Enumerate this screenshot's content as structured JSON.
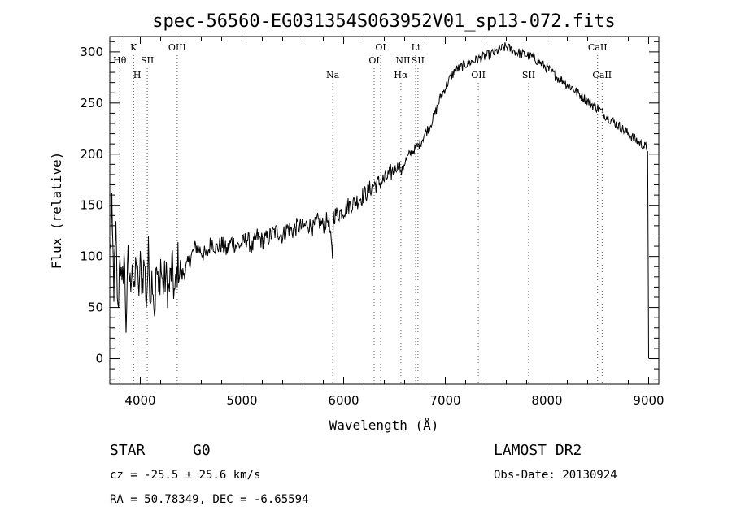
{
  "chart_data": {
    "type": "line",
    "title": "spec-56560-EG031354S063952V01_sp13-072.fits",
    "xlabel": "Wavelength (Å)",
    "ylabel": "Flux (relative)",
    "xlim": [
      3700,
      9100
    ],
    "ylim": [
      -25,
      315
    ],
    "x_ticks": [
      4000,
      5000,
      6000,
      7000,
      8000,
      9000
    ],
    "y_ticks": [
      0,
      50,
      100,
      150,
      200,
      250,
      300
    ],
    "grid": false,
    "legend": "none",
    "series": [
      {
        "x": [
          3705,
          3720,
          3740,
          3760,
          3780,
          3800,
          3820,
          3840,
          3860,
          3880,
          3900,
          3920,
          3940,
          3960,
          3980,
          4000,
          4020,
          4040,
          4060,
          4080,
          4100,
          4120,
          4140,
          4160,
          4180,
          4200,
          4220,
          4250,
          4280,
          4310,
          4340,
          4370,
          4400,
          4430,
          4460,
          4500,
          4550,
          4600,
          4650,
          4700,
          4750,
          4800,
          4850,
          4900,
          4950,
          5000,
          5050,
          5100,
          5150,
          5200,
          5250,
          5300,
          5350,
          5400,
          5450,
          5500,
          5550,
          5600,
          5650,
          5700,
          5750,
          5800,
          5850,
          5890,
          5900,
          5950,
          6000,
          6050,
          6100,
          6150,
          6200,
          6250,
          6300,
          6350,
          6400,
          6450,
          6500,
          6550,
          6563,
          6600,
          6650,
          6700,
          6750,
          6800,
          6850,
          6900,
          6950,
          7000,
          7050,
          7100,
          7150,
          7200,
          7250,
          7300,
          7350,
          7400,
          7450,
          7500,
          7550,
          7600,
          7650,
          7700,
          7750,
          7800,
          7850,
          7900,
          7950,
          8000,
          8050,
          8100,
          8150,
          8200,
          8250,
          8300,
          8350,
          8400,
          8450,
          8500,
          8550,
          8600,
          8650,
          8700,
          8750,
          8800,
          8850,
          8900,
          8950,
          8990,
          9000
        ],
        "y": [
          105,
          140,
          70,
          120,
          40,
          110,
          60,
          105,
          35,
          95,
          70,
          100,
          55,
          105,
          60,
          90,
          75,
          95,
          55,
          100,
          65,
          85,
          45,
          90,
          60,
          95,
          70,
          80,
          65,
          90,
          60,
          95,
          80,
          85,
          90,
          100,
          110,
          105,
          100,
          115,
          108,
          112,
          105,
          115,
          110,
          112,
          118,
          108,
          120,
          115,
          118,
          122,
          125,
          120,
          128,
          125,
          130,
          128,
          132,
          127,
          135,
          130,
          137,
          100,
          140,
          142,
          145,
          150,
          152,
          156,
          160,
          165,
          170,
          172,
          175,
          180,
          185,
          190,
          180,
          192,
          200,
          205,
          210,
          220,
          228,
          240,
          255,
          265,
          275,
          282,
          285,
          288,
          290,
          292,
          294,
          296,
          298,
          300,
          303,
          305,
          302,
          300,
          298,
          297,
          295,
          292,
          288,
          284,
          280,
          275,
          272,
          268,
          265,
          260,
          256,
          252,
          248,
          245,
          240,
          236,
          232,
          228,
          224,
          220,
          216,
          212,
          208,
          206,
          0
        ]
      }
    ],
    "line_markers": [
      {
        "label": "Hθ",
        "x": 3798,
        "pos": "upper"
      },
      {
        "label": "K",
        "x": 3934,
        "pos": "top"
      },
      {
        "label": "H",
        "x": 3969,
        "pos": "lower"
      },
      {
        "label": "SII",
        "x": 4069,
        "pos": "upper"
      },
      {
        "label": "OIII",
        "x": 4363,
        "pos": "top"
      },
      {
        "label": "Na",
        "x": 5893,
        "pos": "lower"
      },
      {
        "label": "OI",
        "x": 6300,
        "pos": "upper"
      },
      {
        "label": "OI",
        "x": 6364,
        "pos": "top"
      },
      {
        "label": "Hα",
        "x": 6563,
        "pos": "lower"
      },
      {
        "label": "NII",
        "x": 6584,
        "pos": "upper"
      },
      {
        "label": "Li",
        "x": 6708,
        "pos": "top"
      },
      {
        "label": "SII",
        "x": 6731,
        "pos": "upper"
      },
      {
        "label": "OII",
        "x": 7325,
        "pos": "lower"
      },
      {
        "label": "SII",
        "x": 7820,
        "pos": "lower"
      },
      {
        "label": "CaII",
        "x": 8498,
        "pos": "top"
      },
      {
        "label": "CaII",
        "x": 8542,
        "pos": "lower"
      }
    ]
  },
  "info": {
    "object_type": "STAR",
    "subclass": "G0",
    "survey": "LAMOST DR2",
    "cz": "cz = -25.5 ± 25.6 km/s",
    "obs_date": "Obs-Date: 20130924",
    "radec": "RA =  50.78349, DEC =  -6.65594"
  }
}
